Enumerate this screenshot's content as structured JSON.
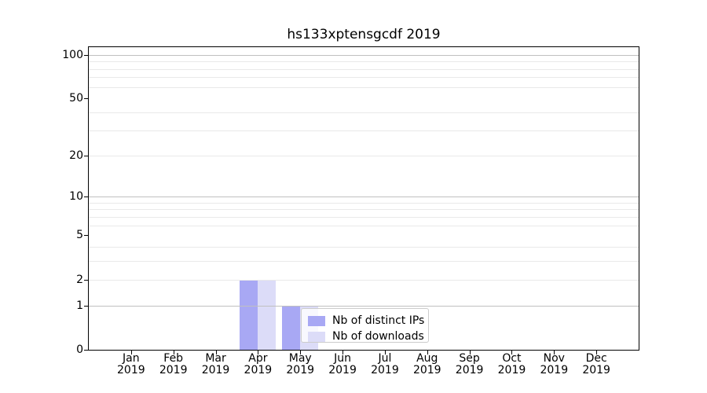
{
  "title": "hs133xptensgcdf 2019",
  "chart_data": {
    "type": "bar",
    "title": "hs133xptensgcdf 2019",
    "xlabel": "",
    "ylabel": "",
    "categories": [
      "Jan",
      "Feb",
      "Mar",
      "Apr",
      "May",
      "Jun",
      "Jul",
      "Aug",
      "Sep",
      "Oct",
      "Nov",
      "Dec"
    ],
    "year_label": "2019",
    "series": [
      {
        "name": "Nb of distinct IPs",
        "key": "distinct-ips",
        "color": "#a8a8f4",
        "values": [
          0,
          0,
          0,
          2,
          1,
          0,
          0,
          0,
          0,
          0,
          0,
          0
        ]
      },
      {
        "name": "Nb of downloads",
        "key": "downloads",
        "color": "#dcdcf8",
        "values": [
          0,
          0,
          0,
          2,
          1,
          0,
          0,
          0,
          0,
          0,
          0,
          0
        ]
      }
    ],
    "yscale": "log1p",
    "yticks": [
      0,
      1,
      2,
      5,
      10,
      20,
      50,
      100
    ],
    "ylim": [
      0,
      113
    ],
    "grid": {
      "major_values": [
        1,
        10,
        100
      ],
      "minor_values": [
        2,
        3,
        4,
        6,
        7,
        8,
        9,
        20,
        30,
        40,
        60,
        70,
        80,
        90
      ],
      "major_color": "#c0c0c0",
      "minor_color": "#e9e9e9"
    },
    "legend": {
      "position": "lower-right-inside",
      "border_color": "#cccccc"
    }
  }
}
